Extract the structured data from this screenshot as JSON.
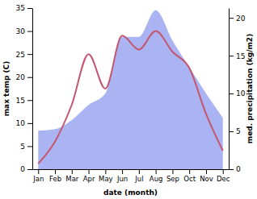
{
  "chart_data": {
    "type": "line",
    "x_label": "date (month)",
    "y_label": "max temp (C)",
    "y2_label": "med. precipitation (kg/m2)",
    "categories": [
      "Jan",
      "Feb",
      "Mar",
      "Apr",
      "May",
      "Jun",
      "Jul",
      "Aug",
      "Sep",
      "Oct",
      "Nov",
      "Dec"
    ],
    "ylim": [
      0,
      35
    ],
    "yticks": [
      0,
      5,
      10,
      15,
      20,
      25,
      30,
      35
    ],
    "y2lim": [
      0,
      21.3
    ],
    "y2ticks": [
      0,
      5,
      10,
      15,
      20
    ],
    "series": [
      {
        "type": "area",
        "axis": "y2",
        "color": "#aab4f3",
        "values": [
          5.1,
          5.3,
          6.5,
          8.5,
          10,
          17.5,
          17.5,
          21,
          17,
          13.5,
          10,
          6.8
        ]
      },
      {
        "type": "line",
        "color": "#c4566e",
        "values": [
          1.2,
          6,
          14,
          25,
          17.5,
          29,
          26,
          30,
          25.5,
          22,
          12,
          4
        ]
      }
    ]
  }
}
